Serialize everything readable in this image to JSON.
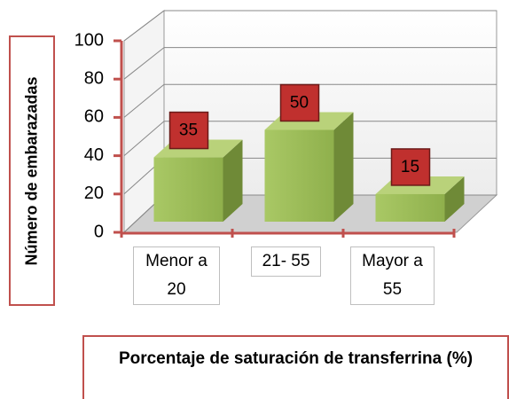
{
  "chart_data": {
    "type": "bar3d",
    "x_label": "Porcentaje de saturación de transferrina (%)",
    "y_label": "Número de embarazadas",
    "categories": [
      "Menor a 20",
      "21- 55",
      "Mayor a 55"
    ],
    "values": [
      35,
      50,
      15
    ],
    "color": "#9bbb59",
    "label_color": "#c0302e",
    "ylim": [
      0,
      100
    ],
    "yticks": [
      0,
      20,
      40,
      60,
      80,
      100
    ],
    "grid": true
  }
}
